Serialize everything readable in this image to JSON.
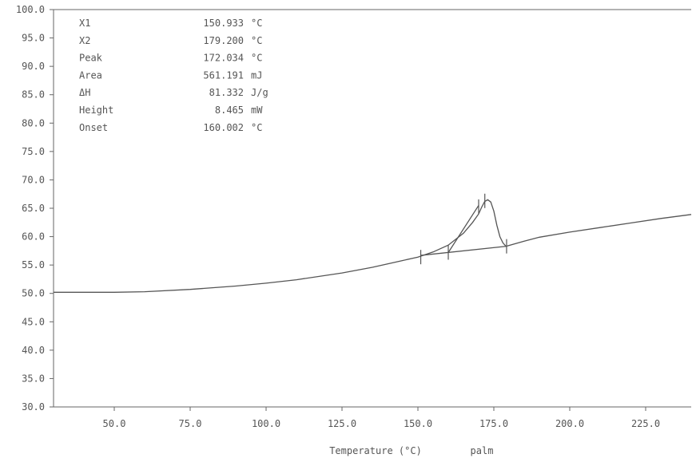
{
  "chart_data": {
    "type": "line",
    "xlabel": "Temperature (°C)",
    "sample": "palm",
    "xlim": [
      30.0,
      240.0
    ],
    "ylim": [
      30.0,
      100.0
    ],
    "x_ticks": [
      "50.0",
      "75.0",
      "100.0",
      "125.0",
      "150.0",
      "175.0",
      "200.0",
      "225.0"
    ],
    "y_ticks": [
      "30.0",
      "35.0",
      "40.0",
      "45.0",
      "50.0",
      "55.0",
      "60.0",
      "65.0",
      "70.0",
      "75.0",
      "80.0",
      "85.0",
      "90.0",
      "95.0",
      "100.0"
    ],
    "grid": false,
    "series": [
      {
        "x": [
          30,
          40,
          50,
          60,
          75,
          90,
          100,
          110,
          125,
          135,
          140,
          145,
          150,
          155,
          160,
          165,
          168,
          170,
          171,
          172,
          173,
          174,
          175,
          176,
          177,
          178,
          179,
          185,
          190,
          200,
          210,
          220,
          230,
          240
        ],
        "y": [
          50.2,
          50.2,
          50.2,
          50.3,
          50.7,
          51.3,
          51.8,
          52.4,
          53.6,
          54.6,
          55.2,
          55.8,
          56.4,
          57.3,
          58.5,
          60.6,
          62.5,
          64.0,
          65.2,
          66.2,
          66.5,
          66.1,
          64.5,
          62.0,
          60.0,
          58.9,
          58.3,
          59.2,
          59.9,
          60.8,
          61.6,
          62.4,
          63.2,
          63.9
        ]
      }
    ],
    "baseline": {
      "x": [
        150.933,
        179.2
      ],
      "y": [
        56.7,
        58.3
      ]
    },
    "onset_tangent": {
      "x": [
        160.002,
        170.0
      ],
      "y": [
        57.2,
        65.5
      ]
    },
    "markers": [
      {
        "x": 150.933,
        "y": 56.4
      },
      {
        "x": 160.002,
        "y": 57.2
      },
      {
        "x": 170.0,
        "y": 65.3
      },
      {
        "x": 172.034,
        "y": 66.3
      },
      {
        "x": 179.2,
        "y": 58.3
      }
    ],
    "annotations": [
      {
        "label": "X1",
        "value": "150.933 °C"
      },
      {
        "label": "X2",
        "value": "179.200 °C"
      },
      {
        "label": "Peak",
        "value": "172.034 °C"
      },
      {
        "label": "Area",
        "value": "561.191 mJ"
      },
      {
        "label": "ΔH",
        "value": "81.332 J/g"
      },
      {
        "label": "Height",
        "value": "8.465 mW"
      },
      {
        "label": "Onset",
        "value": "160.002 °C"
      }
    ]
  }
}
